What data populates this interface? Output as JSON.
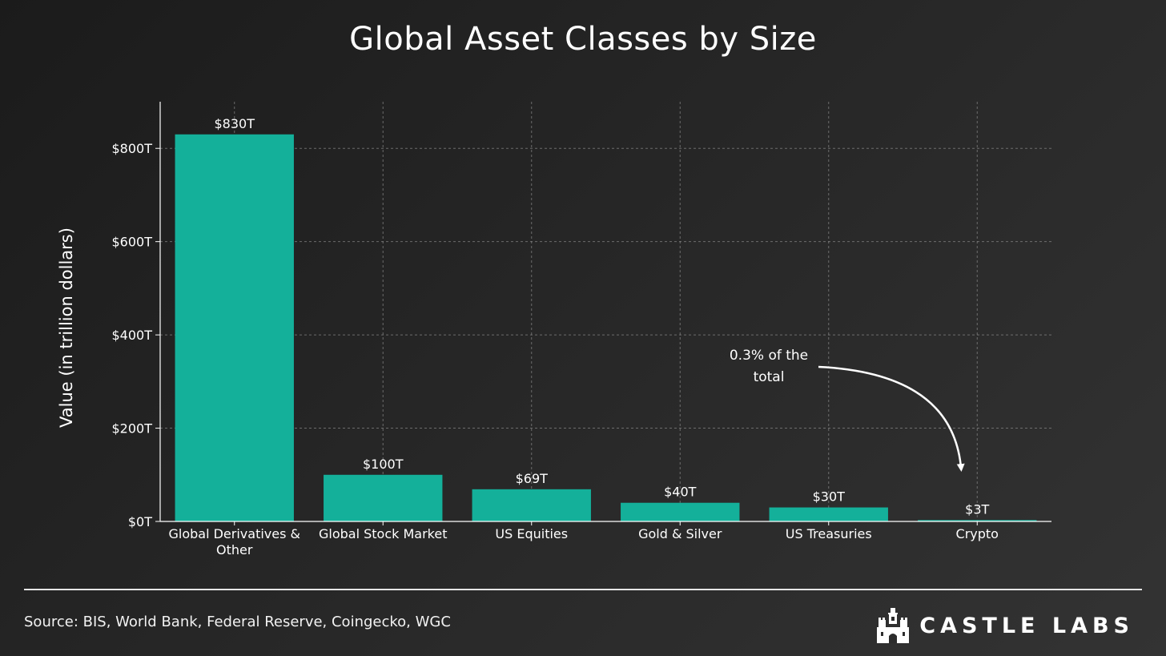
{
  "chart_data": {
    "type": "bar",
    "title": "Global Asset Classes by Size",
    "ylabel": "Value (in trillion dollars)",
    "xlabel": "",
    "ylim": [
      0,
      900
    ],
    "yticks": [
      0,
      200,
      400,
      600,
      800
    ],
    "ytick_labels": [
      "$0T",
      "$200T",
      "$400T",
      "$600T",
      "$800T"
    ],
    "grid": true,
    "categories": [
      [
        "Global Derivatives &",
        "Other"
      ],
      [
        "Global Stock Market"
      ],
      [
        "US Equities"
      ],
      [
        "Gold & Silver"
      ],
      [
        "US Treasuries"
      ],
      [
        "Crypto"
      ]
    ],
    "values": [
      830,
      100,
      69,
      40,
      30,
      3
    ],
    "data_labels": [
      "$830T",
      "$100T",
      "$69T",
      "$40T",
      "$30T",
      "$3T"
    ],
    "annotation": {
      "lines": [
        "0.3% of the",
        "total"
      ],
      "target_category_index": 5
    },
    "bar_color": "#14b09a"
  },
  "footer": {
    "source": "Source: BIS, World Bank, Federal Reserve, Coingecko, WGC",
    "brand_name": "CASTLE LABS",
    "brand_icon": "castle-icon"
  }
}
